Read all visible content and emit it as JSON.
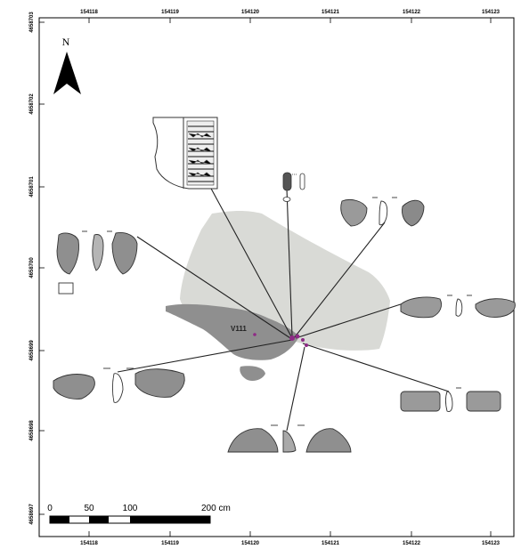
{
  "map": {
    "top_ticks": [
      "154118",
      "154119",
      "154120",
      "154121",
      "154122",
      "154123"
    ],
    "bottom_ticks": [
      "154118",
      "154119",
      "154120",
      "154121",
      "154122",
      "154123"
    ],
    "left_ticks": [
      "4658703",
      "4658702",
      "4658701",
      "4658700",
      "4658699",
      "4658698",
      "4658697"
    ],
    "north_label": "N",
    "site_label": "V111",
    "scale_bar": {
      "labels": [
        "0",
        "50",
        "100",
        "200 cm"
      ]
    },
    "colors": {
      "light_area": "#d9dad6",
      "dark_area": "#8f8f8f",
      "find_marker": "#8e2a86",
      "lines": "#222222",
      "frame": "#000000"
    },
    "artefacts": [
      "pottery-sherd",
      "lithic-group-1",
      "lithic-group-2",
      "lithic-group-3",
      "lithic-group-4",
      "lithic-group-5",
      "lithic-group-6",
      "lithic-group-7",
      "lithic-group-8"
    ]
  }
}
